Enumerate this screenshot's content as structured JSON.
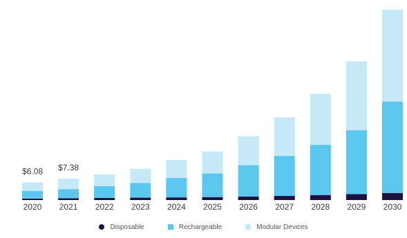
{
  "chart_data": {
    "type": "bar",
    "stacked": true,
    "categories": [
      "2020",
      "2021",
      "2022",
      "2023",
      "2024",
      "2025",
      "2026",
      "2027",
      "2028",
      "2029",
      "2030"
    ],
    "series": [
      {
        "name": "Disposable",
        "color": "#1e1140",
        "values": [
          0.5,
          0.6,
          0.7,
          0.8,
          0.9,
          1.0,
          1.2,
          1.4,
          1.7,
          2.0,
          2.4
        ]
      },
      {
        "name": "Rechargeable",
        "color": "#5bc6ee",
        "values": [
          2.6,
          3.1,
          4.0,
          5.0,
          6.6,
          8.0,
          10.6,
          13.6,
          17.0,
          21.7,
          31.0
        ]
      },
      {
        "name": "Modular Devices",
        "color": "#c6e9f7",
        "values": [
          2.9,
          3.6,
          4.0,
          4.8,
          6.1,
          7.5,
          9.8,
          13.0,
          17.3,
          23.3,
          31.1
        ]
      }
    ],
    "data_labels": [
      {
        "category": "2020",
        "text": "$6.08"
      },
      {
        "category": "2021",
        "text": "$7.38"
      }
    ],
    "ylim": [
      0,
      65
    ],
    "grid": false,
    "legend_position": "bottom"
  }
}
